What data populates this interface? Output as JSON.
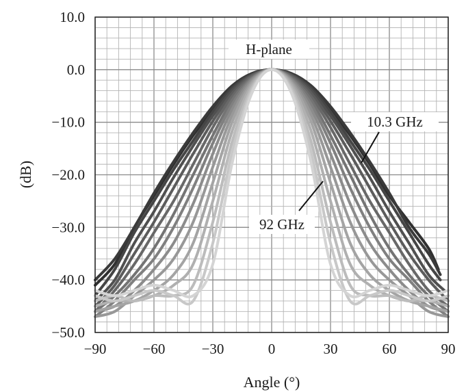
{
  "chart_data": {
    "type": "line",
    "title": "H-plane",
    "xlabel": "Angle (°)",
    "ylabel": "(dB)",
    "xlim": [
      -90,
      90
    ],
    "ylim": [
      -50,
      10
    ],
    "x_ticks": [
      -90,
      -60,
      -30,
      0,
      30,
      60,
      90
    ],
    "x_tick_labels": [
      "−90",
      "−60",
      "−30",
      "0",
      "30",
      "60",
      "90"
    ],
    "y_ticks": [
      10,
      0,
      -10,
      -20,
      -30,
      -40,
      -50
    ],
    "y_tick_labels": [
      "10.0",
      "0.0",
      "−10.0",
      "−20.0",
      "−30.0",
      "−40.0",
      "−50.0"
    ],
    "grid": true,
    "grid_minor_step": {
      "x": 6,
      "y": 2
    },
    "annotations": [
      {
        "text": "10.3 GHz",
        "points_to": {
          "x": 44,
          "y": -17
        }
      },
      {
        "text": "92 GHz",
        "points_to": {
          "x": 27,
          "y": -21
        }
      }
    ],
    "series": [
      {
        "color": "#303030",
        "points": [
          [
            -90,
            -41
          ],
          [
            -80,
            -37
          ],
          [
            -70,
            -30
          ],
          [
            -60,
            -24
          ],
          [
            -50,
            -18
          ],
          [
            -40,
            -12.5
          ],
          [
            -30,
            -7.5
          ],
          [
            -20,
            -3.2
          ],
          [
            -10,
            -0.8
          ],
          [
            0,
            0
          ],
          [
            10,
            -0.8
          ],
          [
            20,
            -3.2
          ],
          [
            30,
            -7.5
          ],
          [
            40,
            -12.5
          ],
          [
            50,
            -18
          ],
          [
            60,
            -24
          ],
          [
            70,
            -29
          ],
          [
            80,
            -34
          ],
          [
            85,
            -38
          ]
        ]
      },
      {
        "color": "#3a3a3a",
        "points": [
          [
            -90,
            -40
          ],
          [
            -80,
            -36
          ],
          [
            -70,
            -30
          ],
          [
            -60,
            -23.5
          ],
          [
            -50,
            -17.5
          ],
          [
            -40,
            -12
          ],
          [
            -30,
            -7
          ],
          [
            -20,
            -3
          ],
          [
            -10,
            -0.7
          ],
          [
            0,
            0
          ],
          [
            10,
            -0.7
          ],
          [
            20,
            -3
          ],
          [
            30,
            -7
          ],
          [
            40,
            -12
          ],
          [
            50,
            -17.5
          ],
          [
            60,
            -23.5
          ],
          [
            70,
            -30
          ],
          [
            80,
            -35
          ],
          [
            86,
            -39
          ]
        ]
      },
      {
        "color": "#454545",
        "points": [
          [
            -90,
            -43
          ],
          [
            -80,
            -38
          ],
          [
            -70,
            -31
          ],
          [
            -60,
            -25
          ],
          [
            -50,
            -19
          ],
          [
            -40,
            -13.5
          ],
          [
            -30,
            -8
          ],
          [
            -20,
            -3.5
          ],
          [
            -10,
            -0.9
          ],
          [
            0,
            0
          ],
          [
            10,
            -0.9
          ],
          [
            20,
            -3.5
          ],
          [
            30,
            -8
          ],
          [
            40,
            -13.5
          ],
          [
            50,
            -19
          ],
          [
            60,
            -25
          ],
          [
            70,
            -31
          ],
          [
            80,
            -37
          ],
          [
            86,
            -40
          ]
        ]
      },
      {
        "color": "#505050",
        "points": [
          [
            -90,
            -44
          ],
          [
            -80,
            -40
          ],
          [
            -70,
            -33
          ],
          [
            -60,
            -27
          ],
          [
            -50,
            -20.5
          ],
          [
            -40,
            -14.5
          ],
          [
            -30,
            -8.8
          ],
          [
            -20,
            -3.9
          ],
          [
            -10,
            -1
          ],
          [
            0,
            0
          ],
          [
            10,
            -1
          ],
          [
            20,
            -3.9
          ],
          [
            30,
            -8.8
          ],
          [
            40,
            -14.5
          ],
          [
            50,
            -20.5
          ],
          [
            60,
            -27
          ],
          [
            70,
            -33
          ],
          [
            80,
            -39
          ],
          [
            88,
            -42
          ]
        ]
      },
      {
        "color": "#5c5c5c",
        "points": [
          [
            -90,
            -45
          ],
          [
            -80,
            -41
          ],
          [
            -70,
            -35
          ],
          [
            -60,
            -29
          ],
          [
            -50,
            -22.5
          ],
          [
            -40,
            -16
          ],
          [
            -30,
            -9.8
          ],
          [
            -20,
            -4.4
          ],
          [
            -10,
            -1.1
          ],
          [
            0,
            0
          ],
          [
            10,
            -1.1
          ],
          [
            20,
            -4.4
          ],
          [
            30,
            -9.8
          ],
          [
            40,
            -16
          ],
          [
            50,
            -22.5
          ],
          [
            60,
            -29
          ],
          [
            70,
            -35
          ],
          [
            80,
            -40
          ],
          [
            90,
            -44
          ]
        ]
      },
      {
        "color": "#686868",
        "points": [
          [
            -90,
            -46
          ],
          [
            -80,
            -42
          ],
          [
            -70,
            -37
          ],
          [
            -60,
            -31
          ],
          [
            -50,
            -25
          ],
          [
            -40,
            -18
          ],
          [
            -30,
            -11
          ],
          [
            -20,
            -5
          ],
          [
            -10,
            -1.3
          ],
          [
            0,
            0
          ],
          [
            10,
            -1.3
          ],
          [
            20,
            -5
          ],
          [
            30,
            -11
          ],
          [
            40,
            -18
          ],
          [
            50,
            -25
          ],
          [
            60,
            -31
          ],
          [
            70,
            -37
          ],
          [
            80,
            -42
          ],
          [
            90,
            -45
          ]
        ]
      },
      {
        "color": "#747474",
        "points": [
          [
            -90,
            -46
          ],
          [
            -80,
            -43
          ],
          [
            -70,
            -39
          ],
          [
            -60,
            -34
          ],
          [
            -50,
            -27.5
          ],
          [
            -40,
            -20
          ],
          [
            -30,
            -12.5
          ],
          [
            -20,
            -5.7
          ],
          [
            -10,
            -1.5
          ],
          [
            0,
            0
          ],
          [
            10,
            -1.5
          ],
          [
            20,
            -5.7
          ],
          [
            30,
            -12.5
          ],
          [
            40,
            -20
          ],
          [
            50,
            -27.5
          ],
          [
            60,
            -34
          ],
          [
            70,
            -39
          ],
          [
            80,
            -43
          ],
          [
            90,
            -46
          ]
        ]
      },
      {
        "color": "#808080",
        "points": [
          [
            -90,
            -47
          ],
          [
            -80,
            -44
          ],
          [
            -70,
            -40
          ],
          [
            -60,
            -36
          ],
          [
            -50,
            -30
          ],
          [
            -40,
            -22.5
          ],
          [
            -30,
            -14
          ],
          [
            -20,
            -6.5
          ],
          [
            -10,
            -1.7
          ],
          [
            0,
            0
          ],
          [
            10,
            -1.7
          ],
          [
            20,
            -6.5
          ],
          [
            30,
            -14
          ],
          [
            40,
            -22.5
          ],
          [
            50,
            -30
          ],
          [
            60,
            -36
          ],
          [
            70,
            -40
          ],
          [
            80,
            -44
          ],
          [
            90,
            -47
          ]
        ]
      },
      {
        "color": "#8c8c8c",
        "points": [
          [
            -90,
            -46
          ],
          [
            -80,
            -45
          ],
          [
            -70,
            -42
          ],
          [
            -60,
            -38
          ],
          [
            -50,
            -33
          ],
          [
            -40,
            -25.5
          ],
          [
            -30,
            -16
          ],
          [
            -20,
            -7.4
          ],
          [
            -10,
            -1.9
          ],
          [
            0,
            0
          ],
          [
            10,
            -1.9
          ],
          [
            20,
            -7.4
          ],
          [
            30,
            -16
          ],
          [
            40,
            -25.5
          ],
          [
            50,
            -33
          ],
          [
            60,
            -38
          ],
          [
            70,
            -42
          ],
          [
            80,
            -45
          ],
          [
            90,
            -46
          ]
        ]
      },
      {
        "color": "#989898",
        "points": [
          [
            -90,
            -47
          ],
          [
            -80,
            -46
          ],
          [
            -70,
            -43
          ],
          [
            -60,
            -40
          ],
          [
            -50,
            -36
          ],
          [
            -40,
            -29
          ],
          [
            -30,
            -18.5
          ],
          [
            -20,
            -8.5
          ],
          [
            -10,
            -2.2
          ],
          [
            0,
            0
          ],
          [
            10,
            -2.2
          ],
          [
            20,
            -8.5
          ],
          [
            30,
            -18.5
          ],
          [
            40,
            -29
          ],
          [
            50,
            -36
          ],
          [
            60,
            -40
          ],
          [
            70,
            -43
          ],
          [
            80,
            -46
          ],
          [
            90,
            -47
          ]
        ]
      },
      {
        "color": "#a4a4a4",
        "points": [
          [
            -90,
            -46
          ],
          [
            -80,
            -45
          ],
          [
            -70,
            -44
          ],
          [
            -60,
            -42
          ],
          [
            -50,
            -39
          ],
          [
            -40,
            -33
          ],
          [
            -30,
            -21.5
          ],
          [
            -20,
            -9.8
          ],
          [
            -10,
            -2.5
          ],
          [
            0,
            0
          ],
          [
            10,
            -2.5
          ],
          [
            20,
            -9.8
          ],
          [
            30,
            -21.5
          ],
          [
            40,
            -33
          ],
          [
            50,
            -39
          ],
          [
            60,
            -42
          ],
          [
            70,
            -44
          ],
          [
            80,
            -45
          ],
          [
            90,
            -46
          ]
        ]
      },
      {
        "color": "#b0b0b0",
        "points": [
          [
            -90,
            -45
          ],
          [
            -80,
            -44
          ],
          [
            -70,
            -44
          ],
          [
            -60,
            -43
          ],
          [
            -50,
            -41
          ],
          [
            -40,
            -37
          ],
          [
            -30,
            -25
          ],
          [
            -20,
            -11.5
          ],
          [
            -10,
            -2.9
          ],
          [
            0,
            0
          ],
          [
            10,
            -2.9
          ],
          [
            20,
            -11.5
          ],
          [
            30,
            -25
          ],
          [
            40,
            -37
          ],
          [
            50,
            -41
          ],
          [
            60,
            -43
          ],
          [
            70,
            -44
          ],
          [
            80,
            -44
          ],
          [
            90,
            -45
          ]
        ]
      },
      {
        "color": "#bcbcbc",
        "points": [
          [
            -90,
            -44
          ],
          [
            -80,
            -43
          ],
          [
            -70,
            -44
          ],
          [
            -60,
            -43
          ],
          [
            -50,
            -43
          ],
          [
            -40,
            -41
          ],
          [
            -30,
            -29
          ],
          [
            -20,
            -13.5
          ],
          [
            -10,
            -3.4
          ],
          [
            0,
            0
          ],
          [
            10,
            -3.4
          ],
          [
            20,
            -13.5
          ],
          [
            30,
            -29
          ],
          [
            40,
            -41
          ],
          [
            50,
            -43
          ],
          [
            60,
            -43
          ],
          [
            70,
            -44
          ],
          [
            80,
            -43
          ],
          [
            90,
            -44
          ]
        ]
      },
      {
        "color": "#c8c8c8",
        "points": [
          [
            -90,
            -43
          ],
          [
            -80,
            -44
          ],
          [
            -70,
            -43
          ],
          [
            -60,
            -42
          ],
          [
            -50,
            -43
          ],
          [
            -40,
            -44
          ],
          [
            -30,
            -33
          ],
          [
            -20,
            -15.5
          ],
          [
            -10,
            -3.9
          ],
          [
            0,
            0
          ],
          [
            10,
            -3.9
          ],
          [
            20,
            -15.5
          ],
          [
            30,
            -33
          ],
          [
            40,
            -44
          ],
          [
            50,
            -43
          ],
          [
            60,
            -42
          ],
          [
            70,
            -43
          ],
          [
            80,
            -44
          ],
          [
            90,
            -43
          ]
        ]
      },
      {
        "color": "#d4d4d4",
        "points": [
          [
            -90,
            -42
          ],
          [
            -80,
            -43
          ],
          [
            -70,
            -42
          ],
          [
            -60,
            -41
          ],
          [
            -50,
            -42
          ],
          [
            -40,
            -43
          ],
          [
            -30,
            -37
          ],
          [
            -20,
            -17.5
          ],
          [
            -10,
            -4.4
          ],
          [
            0,
            0
          ],
          [
            10,
            -4.4
          ],
          [
            20,
            -17.5
          ],
          [
            30,
            -37
          ],
          [
            40,
            -43
          ],
          [
            50,
            -42
          ],
          [
            60,
            -41
          ],
          [
            70,
            -42
          ],
          [
            80,
            -43
          ],
          [
            90,
            -42
          ]
        ]
      }
    ]
  }
}
